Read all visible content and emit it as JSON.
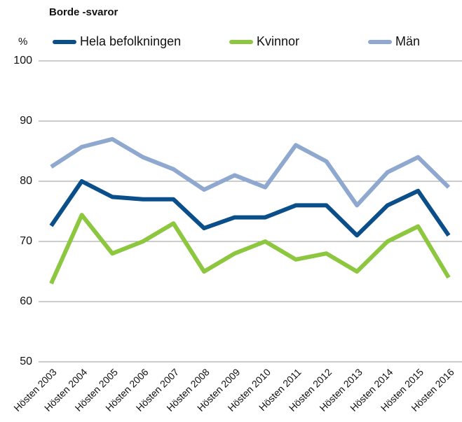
{
  "chart_data": {
    "type": "line",
    "title": "Borde -svaror",
    "y_label": "%",
    "categories": [
      "Hösten 2003",
      "Hösten 2004",
      "Hösten 2005",
      "Hösten 2006",
      "Hösten 2007",
      "Hösten 2008",
      "Hösten 2009",
      "Hösten 2010",
      "Hösten 2011",
      "Hösten 2012",
      "Hösten 2013",
      "Hösten 2014",
      "Hösten 2015",
      "Hösten 2016"
    ],
    "series": [
      {
        "name": "Hela befolkningen",
        "color": "#0b4f8a",
        "values": [
          72.6,
          80,
          77.4,
          77,
          77,
          72.2,
          74,
          74,
          76,
          76,
          71,
          76,
          78.4,
          71
        ]
      },
      {
        "name": "Kvinnor",
        "color": "#8dc63f",
        "values": [
          63,
          74.4,
          68,
          70,
          73,
          65,
          68,
          70,
          67,
          68,
          65,
          70,
          72.5,
          64
        ]
      },
      {
        "name": "Män",
        "color": "#8fa8d0",
        "values": [
          82.4,
          85.7,
          87,
          84,
          82,
          78.6,
          81,
          79,
          86,
          83.3,
          76,
          81.5,
          84,
          79
        ]
      }
    ],
    "ylim": [
      50,
      100
    ],
    "yticks": [
      50,
      60,
      70,
      80,
      90,
      100
    ],
    "grid": true
  }
}
